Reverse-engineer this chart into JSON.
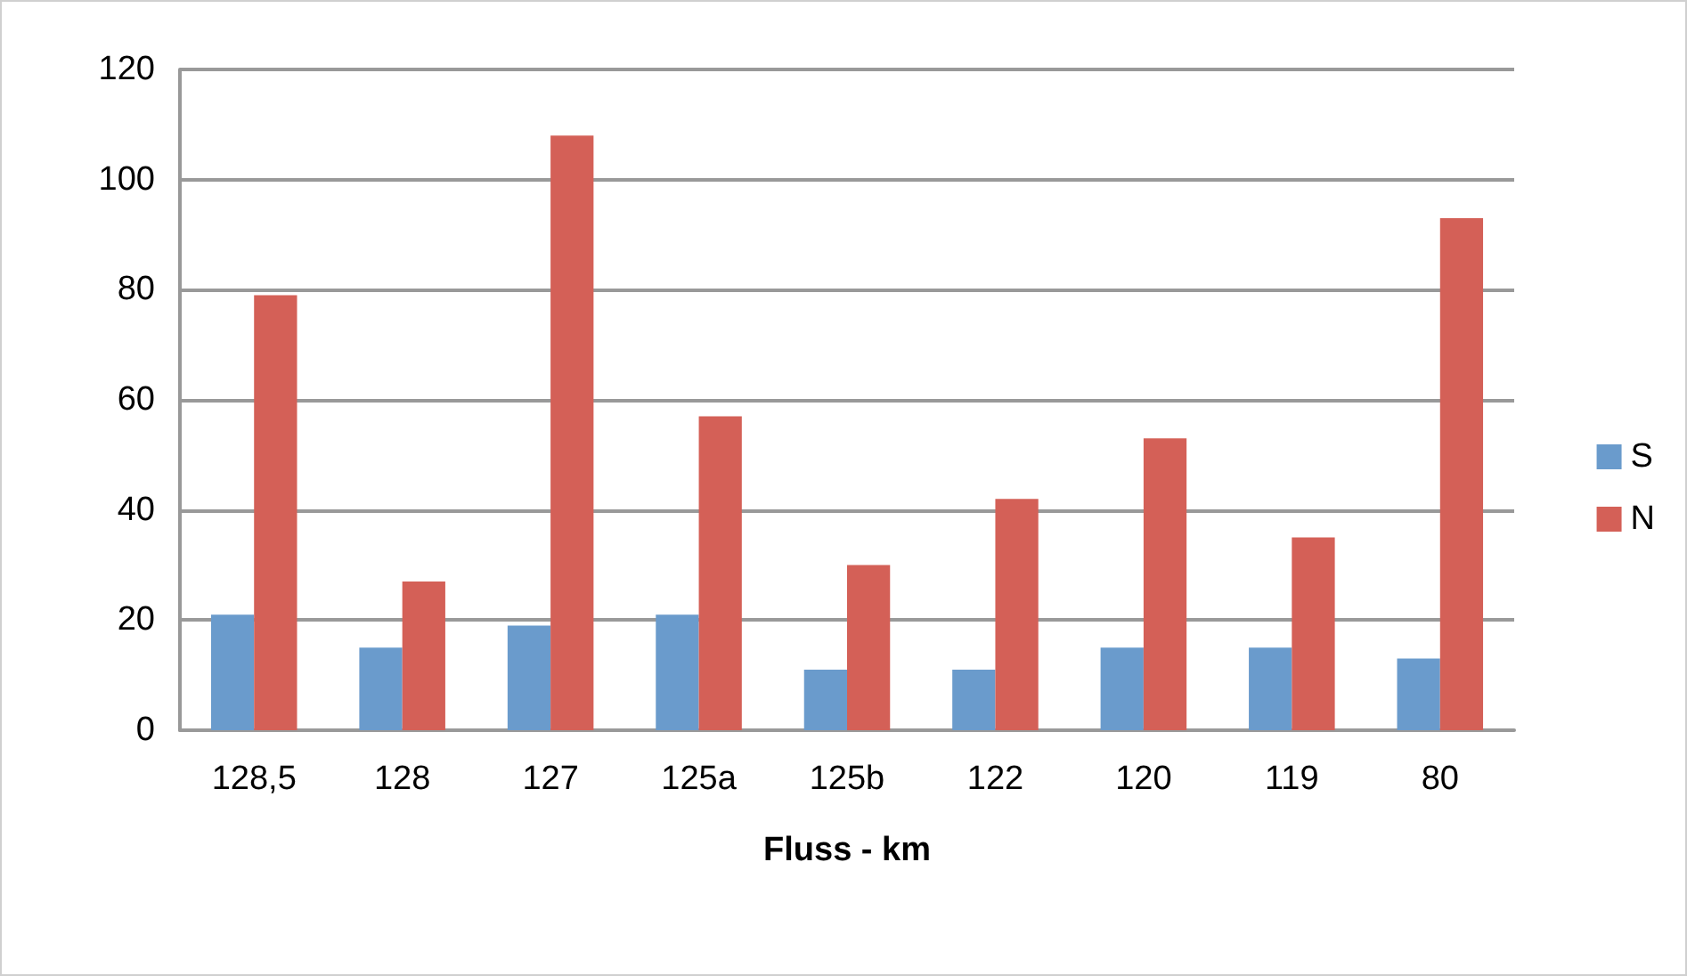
{
  "chart_data": {
    "type": "bar",
    "xlabel": "Fluss - km",
    "categories": [
      "128,5",
      "128",
      "127",
      "125a",
      "125b",
      "122",
      "120",
      "119",
      "80"
    ],
    "series": [
      {
        "name": "S",
        "color": "#6a9bcc",
        "values": [
          21,
          15,
          19,
          21,
          11,
          11,
          15,
          15,
          13
        ]
      },
      {
        "name": "N",
        "color": "#d46057",
        "values": [
          79,
          27,
          108,
          57,
          30,
          42,
          53,
          35,
          93
        ]
      }
    ],
    "ylim": [
      0,
      120
    ],
    "yticks": [
      0,
      20,
      40,
      60,
      80,
      100,
      120
    ],
    "grid": "y",
    "legend": "right"
  }
}
